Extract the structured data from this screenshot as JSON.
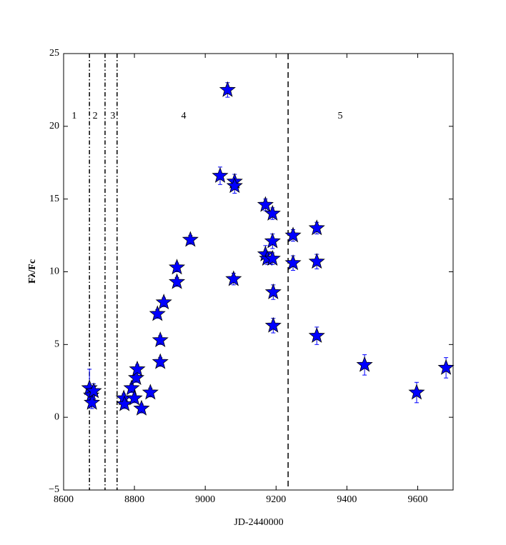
{
  "chart_data": {
    "type": "scatter",
    "xlabel": "JD-2440000",
    "ylabel": "Fλ/Fc",
    "xlim": [
      8600,
      9700
    ],
    "ylim": [
      -5,
      25
    ],
    "xticks": [
      8600,
      8800,
      9000,
      9200,
      9400,
      9600
    ],
    "yticks": [
      {
        "value": -5,
        "label": "−5"
      },
      0,
      5,
      10,
      15,
      20,
      25
    ],
    "color": "#0000ff",
    "marker": "star",
    "x": [
      8673,
      8678,
      8680,
      8685,
      8770,
      8772,
      8792,
      8800,
      8805,
      8808,
      8820,
      8845,
      8865,
      8873,
      8873,
      8883,
      8920,
      8920,
      8958,
      9042,
      9063,
      9080,
      9083,
      9083,
      9170,
      9170,
      9175,
      9190,
      9190,
      9190,
      9192,
      9192,
      9248,
      9248,
      9315,
      9315,
      9315,
      9450,
      9597,
      9680
    ],
    "values": [
      2.0,
      1.5,
      1.0,
      1.8,
      1.3,
      0.9,
      2.0,
      1.3,
      2.7,
      3.3,
      0.6,
      1.7,
      7.1,
      5.3,
      3.8,
      7.9,
      10.3,
      9.3,
      12.2,
      16.6,
      22.5,
      9.5,
      16.2,
      15.9,
      14.6,
      11.2,
      10.9,
      14.0,
      12.1,
      10.9,
      8.6,
      6.3,
      12.5,
      10.6,
      13.0,
      10.7,
      5.6,
      3.6,
      1.7,
      3.4
    ],
    "errors": [
      1.3,
      0.5,
      0.4,
      0.5,
      0.3,
      0.3,
      0.3,
      0.3,
      0.3,
      0.3,
      0.3,
      0.3,
      0.3,
      0.3,
      0.3,
      0.3,
      0.3,
      0.3,
      0.3,
      0.6,
      0.5,
      0.4,
      0.5,
      0.5,
      0.4,
      0.6,
      0.4,
      0.4,
      0.5,
      0.4,
      0.5,
      0.5,
      0.4,
      0.5,
      0.4,
      0.5,
      0.6,
      0.7,
      0.7,
      0.7
    ],
    "vlines": [
      {
        "x": 8673,
        "style": "dashdot"
      },
      {
        "x": 8717,
        "style": "dashdot"
      },
      {
        "x": 8751,
        "style": "dashdot"
      },
      {
        "x": 9234,
        "style": "dashed"
      }
    ],
    "annotations": [
      {
        "text": "1",
        "x": 8630,
        "y": 20.7
      },
      {
        "text": "2",
        "x": 8689,
        "y": 20.7
      },
      {
        "text": "3",
        "x": 8739,
        "y": 20.7
      },
      {
        "text": "4",
        "x": 8939,
        "y": 20.7
      },
      {
        "text": "5",
        "x": 9381,
        "y": 20.7
      }
    ]
  }
}
